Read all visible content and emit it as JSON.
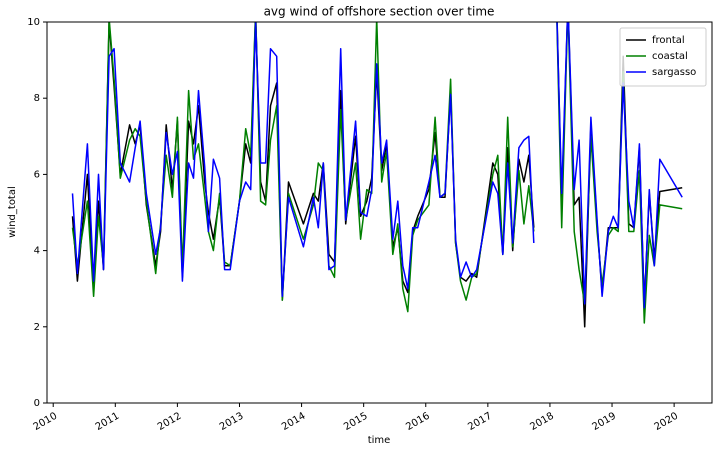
{
  "chart_data": {
    "type": "line",
    "title": "avg wind of offshore section over time",
    "x_label": "time",
    "y_label": "wind_total",
    "x": [
      2010.31,
      2010.39,
      2010.55,
      2010.65,
      2010.73,
      2010.81,
      2010.9,
      2010.98,
      2011.08,
      2011.23,
      2011.32,
      2011.4,
      2011.5,
      2011.65,
      2011.73,
      2011.82,
      2011.92,
      2012.0,
      2012.08,
      2012.18,
      2012.26,
      2012.34,
      2012.44,
      2012.5,
      2012.58,
      2012.68,
      2012.76,
      2012.85,
      2013.0,
      2013.1,
      2013.18,
      2013.26,
      2013.34,
      2013.42,
      2013.5,
      2013.6,
      2013.69,
      2013.79,
      2014.03,
      2014.19,
      2014.27,
      2014.35,
      2014.44,
      2014.53,
      2014.63,
      2014.71,
      2014.87,
      2014.95,
      2015.05,
      2015.13,
      2015.21,
      2015.29,
      2015.37,
      2015.47,
      2015.55,
      2015.63,
      2015.71,
      2015.79,
      2015.87,
      2016.05,
      2016.15,
      2016.23,
      2016.31,
      2016.4,
      2016.48,
      2016.56,
      2016.65,
      2016.74,
      2016.82,
      2017.08,
      2017.16,
      2017.24,
      2017.32,
      2017.4,
      2017.5,
      2017.58,
      2017.66,
      2017.74,
      2017.9,
      2018.1,
      2018.19,
      2018.29,
      2018.39,
      2018.47,
      2018.56,
      2018.66,
      2018.76,
      2018.84,
      2018.94,
      2019.02,
      2019.1,
      2019.18,
      2019.27,
      2019.35,
      2019.44,
      2019.52,
      2019.6,
      2019.68,
      2019.77,
      2020.13
    ],
    "series": [
      {
        "name": "frontal",
        "color": "#000000",
        "values": [
          4.9,
          3.2,
          6.0,
          3.0,
          5.3,
          3.5,
          10.0,
          8.3,
          6.0,
          7.3,
          6.8,
          7.3,
          5.2,
          3.6,
          4.5,
          7.3,
          5.6,
          7.4,
          3.3,
          7.4,
          6.8,
          7.8,
          5.8,
          5.0,
          4.3,
          5.4,
          3.6,
          3.6,
          5.3,
          6.8,
          6.3,
          10.2,
          5.8,
          5.3,
          7.8,
          8.4,
          2.7,
          5.8,
          4.7,
          5.5,
          5.3,
          6.3,
          3.9,
          3.7,
          8.2,
          4.7,
          7.0,
          4.9,
          5.3,
          5.9,
          8.7,
          6.1,
          6.8,
          4.1,
          4.6,
          3.2,
          2.9,
          4.5,
          4.9,
          5.6,
          7.1,
          5.4,
          5.4,
          8.2,
          4.2,
          3.3,
          3.2,
          3.4,
          3.3,
          6.3,
          6.0,
          3.9,
          6.7,
          4.0,
          6.4,
          5.8,
          6.5,
          4.6,
          null,
          11.0,
          5.2,
          10.5,
          5.2,
          5.4,
          2.0,
          7.3,
          4.7,
          2.9,
          4.6,
          4.6,
          4.6,
          9.1,
          4.7,
          4.6,
          6.7,
          2.6,
          5.5,
          3.8,
          5.55,
          5.65
        ]
      },
      {
        "name": "coastal",
        "color": "#008000",
        "values": [
          4.6,
          3.6,
          5.3,
          2.8,
          4.9,
          3.6,
          10.1,
          8.5,
          5.9,
          6.9,
          7.2,
          7.0,
          5.3,
          3.4,
          4.7,
          6.5,
          5.4,
          7.5,
          3.5,
          8.2,
          6.4,
          6.8,
          5.4,
          4.5,
          4.0,
          5.5,
          3.7,
          3.6,
          5.3,
          7.2,
          6.5,
          10.3,
          5.3,
          5.2,
          6.9,
          7.8,
          2.7,
          5.5,
          4.3,
          5.2,
          6.3,
          6.1,
          3.6,
          3.3,
          7.7,
          4.8,
          6.3,
          4.3,
          5.6,
          5.5,
          10.1,
          5.8,
          6.6,
          3.9,
          4.7,
          3.0,
          2.4,
          4.4,
          4.8,
          5.2,
          7.5,
          5.4,
          5.5,
          8.5,
          4.2,
          3.2,
          2.7,
          3.3,
          3.4,
          6.0,
          6.5,
          3.9,
          7.5,
          4.1,
          6.1,
          4.7,
          5.7,
          4.5,
          null,
          10.8,
          4.6,
          10.4,
          4.5,
          3.5,
          2.6,
          7.0,
          4.5,
          3.1,
          4.4,
          4.6,
          4.5,
          8.7,
          4.5,
          4.5,
          6.1,
          2.1,
          4.4,
          3.6,
          5.2,
          5.1
        ]
      },
      {
        "name": "sargasso",
        "color": "#0000ff",
        "values": [
          5.5,
          3.4,
          6.8,
          3.2,
          6.0,
          3.5,
          9.1,
          9.3,
          6.3,
          5.8,
          6.7,
          7.4,
          5.5,
          3.9,
          4.6,
          7.1,
          6.0,
          6.6,
          3.2,
          6.3,
          5.9,
          8.2,
          6.2,
          4.5,
          6.4,
          5.9,
          3.5,
          3.5,
          5.3,
          5.8,
          5.6,
          10.0,
          6.3,
          6.3,
          9.3,
          9.1,
          2.8,
          5.4,
          4.1,
          5.4,
          4.6,
          6.3,
          3.5,
          3.6,
          9.3,
          4.8,
          7.4,
          5.0,
          4.9,
          5.6,
          8.9,
          6.3,
          6.9,
          4.3,
          5.3,
          3.6,
          3.0,
          4.6,
          4.6,
          5.8,
          6.5,
          5.4,
          5.5,
          8.1,
          4.3,
          3.3,
          3.7,
          3.3,
          3.5,
          5.8,
          5.5,
          3.9,
          6.3,
          4.2,
          6.7,
          6.9,
          7.0,
          4.2,
          null,
          10.8,
          5.5,
          10.5,
          5.6,
          6.9,
          2.6,
          7.5,
          4.8,
          2.8,
          4.5,
          4.9,
          4.6,
          8.4,
          5.3,
          4.6,
          6.8,
          2.5,
          5.6,
          3.6,
          6.4,
          5.4
        ]
      }
    ],
    "xlim": [
      2009.9,
      2020.61
    ],
    "xticks": [
      2010,
      2011,
      2012,
      2013,
      2014,
      2015,
      2016,
      2017,
      2018,
      2019,
      2020
    ],
    "ylim": [
      0,
      10
    ],
    "yticks": [
      0,
      2,
      4,
      6,
      8,
      10
    ],
    "grid": false,
    "legend": "upper right"
  }
}
